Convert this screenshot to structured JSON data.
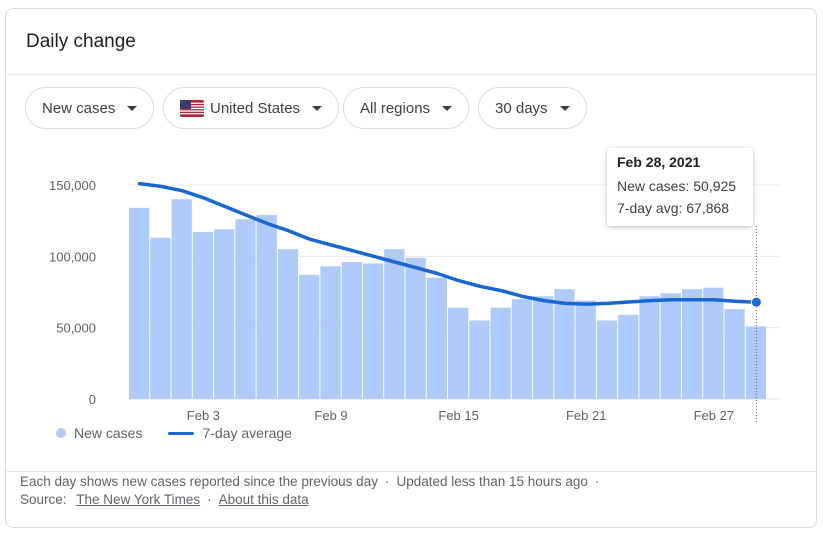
{
  "card": {
    "title": "Daily change"
  },
  "filters": {
    "metric": "New cases",
    "location": "United States",
    "region": "All regions",
    "range": "30 days"
  },
  "tooltip": {
    "date": "Feb 28, 2021",
    "new_cases": "New cases: 50,925",
    "avg": "7-day avg: 67,868"
  },
  "legend": {
    "bars": "New cases",
    "line": "7-day average"
  },
  "footer": {
    "description": "Each day shows new cases reported since the previous day",
    "updated": "Updated less than 15 hours ago",
    "source_label": "Source:",
    "source_link": "The New York Times",
    "about_link": "About this data"
  },
  "colors": {
    "bar": "#aecbfa",
    "line": "#1967d2",
    "grid": "#e8eaed",
    "axis_text": "#5f6368"
  },
  "chart_data": {
    "type": "bar",
    "series": [
      {
        "name": "New cases",
        "type": "bar",
        "values": [
          134000,
          113000,
          140000,
          117000,
          119000,
          126000,
          129000,
          105000,
          87000,
          93000,
          96000,
          95000,
          105000,
          99000,
          85000,
          64000,
          55000,
          64000,
          70000,
          72000,
          77000,
          69000,
          55000,
          59000,
          72000,
          74000,
          77000,
          78000,
          63000,
          50925
        ]
      },
      {
        "name": "7-day average",
        "type": "line",
        "values": [
          151000,
          149000,
          146000,
          141000,
          135000,
          129000,
          123000,
          118000,
          112000,
          108000,
          104000,
          100000,
          96000,
          92000,
          88000,
          83000,
          79000,
          76000,
          72000,
          69000,
          67000,
          66500,
          67000,
          68000,
          69000,
          69500,
          69500,
          69500,
          68500,
          67868
        ]
      }
    ],
    "x_tick_labels": [
      "Feb 3",
      "Feb 9",
      "Feb 15",
      "Feb 21",
      "Feb 27"
    ],
    "x_tick_index": [
      3,
      9,
      15,
      21,
      27
    ],
    "y_ticks": [
      0,
      50000,
      100000,
      150000
    ],
    "y_tick_labels": [
      "0",
      "50,000",
      "100,000",
      "150,000"
    ],
    "ylim": [
      0,
      150000
    ],
    "grid": true,
    "legend_position": "bottom-left",
    "highlighted_index": 29
  }
}
